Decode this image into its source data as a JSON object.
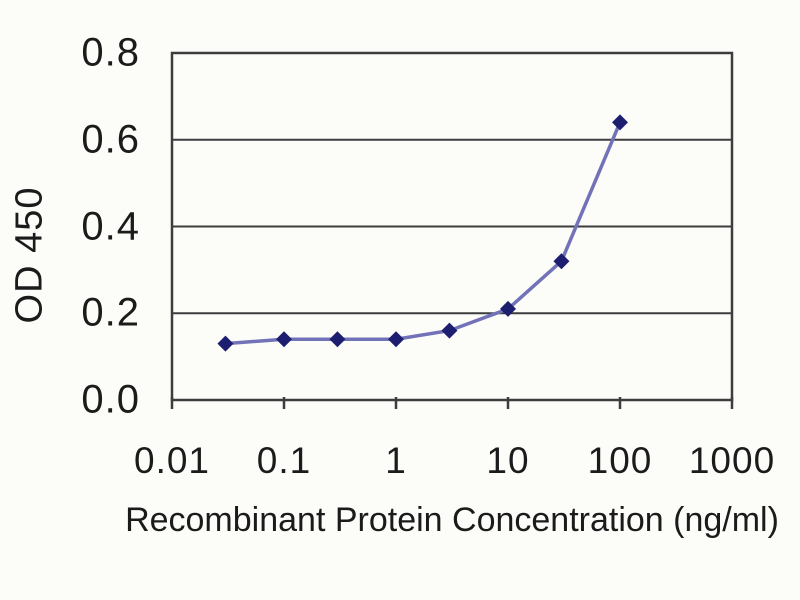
{
  "chart_data": {
    "type": "line",
    "title": "",
    "xlabel": "Recombinant Protein Concentration (ng/ml)",
    "ylabel": "OD 450",
    "x_scale": "log",
    "xlim": [
      0.01,
      1000
    ],
    "ylim": [
      0.0,
      0.8
    ],
    "x_ticks": [
      0.01,
      0.1,
      1,
      10,
      100,
      1000
    ],
    "x_tick_labels": [
      "0.01",
      "0.1",
      "1",
      "10",
      "100",
      "1000"
    ],
    "y_ticks": [
      0.0,
      0.2,
      0.4,
      0.6,
      0.8
    ],
    "y_tick_labels": [
      "0.0",
      "0.2",
      "0.4",
      "0.6",
      "0.8"
    ],
    "grid": "horizontal-solid",
    "legend": "none",
    "series": [
      {
        "name": "OD 450",
        "marker": "diamond",
        "x": [
          0.03,
          0.1,
          0.3,
          1,
          3,
          10,
          30,
          100
        ],
        "y": [
          0.13,
          0.14,
          0.14,
          0.14,
          0.16,
          0.21,
          0.32,
          0.64
        ]
      }
    ],
    "colors": {
      "line": "#7272b8",
      "marker": "#1e1e70",
      "axis": "#3d3d3d",
      "text": "#1b1b1b",
      "background": "#fcfcf9"
    }
  }
}
